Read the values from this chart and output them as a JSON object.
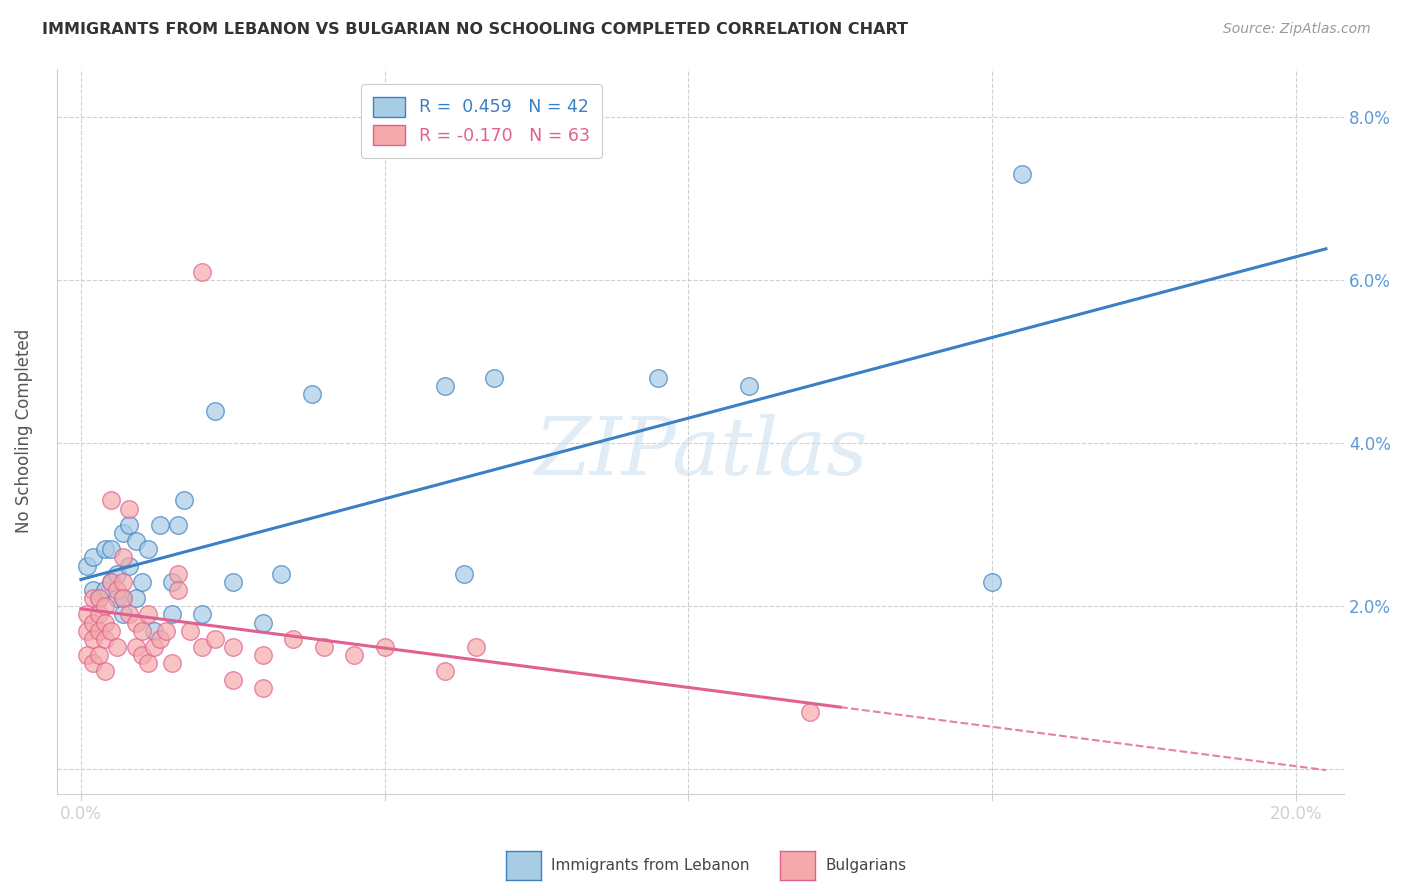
{
  "title": "IMMIGRANTS FROM LEBANON VS BULGARIAN NO SCHOOLING COMPLETED CORRELATION CHART",
  "source": "Source: ZipAtlas.com",
  "xlabel_ticks": [
    0.0,
    0.05,
    0.1,
    0.15,
    0.2
  ],
  "xlabel_tick_labels": [
    "0.0%",
    "",
    "",
    "",
    "20.0%"
  ],
  "ylabel_ticks": [
    0.0,
    0.02,
    0.04,
    0.06,
    0.08
  ],
  "ylabel_tick_labels_right": [
    "",
    "2.0%",
    "4.0%",
    "6.0%",
    "8.0%"
  ],
  "xlim": [
    -0.004,
    0.208
  ],
  "ylim": [
    -0.003,
    0.086
  ],
  "ylabel": "No Schooling Completed",
  "legend_label1": "Immigrants from Lebanon",
  "legend_label2": "Bulgarians",
  "R1": "0.459",
  "N1": "42",
  "R2": "-0.170",
  "N2": "63",
  "color1": "#a8cce4",
  "color2": "#f4aaaa",
  "trendline1_color": "#3b7fc4",
  "trendline2_color": "#e06090",
  "trendline1_solid_end": 0.205,
  "trendline2_solid_end": 0.125,
  "trendline2_dash_end": 0.205,
  "watermark_text": "ZIPatlas",
  "scatter1_x": [
    0.001,
    0.002,
    0.002,
    0.003,
    0.004,
    0.004,
    0.005,
    0.005,
    0.006,
    0.006,
    0.007,
    0.007,
    0.007,
    0.008,
    0.008,
    0.009,
    0.009,
    0.01,
    0.011,
    0.012,
    0.013,
    0.015,
    0.015,
    0.016,
    0.017,
    0.02,
    0.022,
    0.025,
    0.03,
    0.033,
    0.038,
    0.06,
    0.063,
    0.068,
    0.095,
    0.11,
    0.15,
    0.155
  ],
  "scatter1_y": [
    0.025,
    0.022,
    0.026,
    0.021,
    0.022,
    0.027,
    0.023,
    0.027,
    0.021,
    0.024,
    0.021,
    0.019,
    0.029,
    0.03,
    0.025,
    0.021,
    0.028,
    0.023,
    0.027,
    0.017,
    0.03,
    0.023,
    0.019,
    0.03,
    0.033,
    0.019,
    0.044,
    0.023,
    0.018,
    0.024,
    0.046,
    0.047,
    0.024,
    0.048,
    0.048,
    0.047,
    0.023,
    0.073
  ],
  "scatter2_x": [
    0.001,
    0.001,
    0.001,
    0.002,
    0.002,
    0.002,
    0.002,
    0.003,
    0.003,
    0.003,
    0.003,
    0.004,
    0.004,
    0.004,
    0.004,
    0.005,
    0.005,
    0.005,
    0.006,
    0.006,
    0.007,
    0.007,
    0.007,
    0.008,
    0.008,
    0.009,
    0.009,
    0.01,
    0.01,
    0.011,
    0.011,
    0.012,
    0.013,
    0.014,
    0.015,
    0.016,
    0.016,
    0.018,
    0.02,
    0.02,
    0.022,
    0.025,
    0.025,
    0.03,
    0.03,
    0.035,
    0.04,
    0.045,
    0.05,
    0.06,
    0.065,
    0.12
  ],
  "scatter2_y": [
    0.019,
    0.017,
    0.014,
    0.021,
    0.018,
    0.016,
    0.013,
    0.021,
    0.019,
    0.017,
    0.014,
    0.02,
    0.018,
    0.016,
    0.012,
    0.033,
    0.023,
    0.017,
    0.022,
    0.015,
    0.026,
    0.023,
    0.021,
    0.032,
    0.019,
    0.018,
    0.015,
    0.017,
    0.014,
    0.019,
    0.013,
    0.015,
    0.016,
    0.017,
    0.013,
    0.024,
    0.022,
    0.017,
    0.061,
    0.015,
    0.016,
    0.015,
    0.011,
    0.014,
    0.01,
    0.016,
    0.015,
    0.014,
    0.015,
    0.012,
    0.015,
    0.007
  ]
}
